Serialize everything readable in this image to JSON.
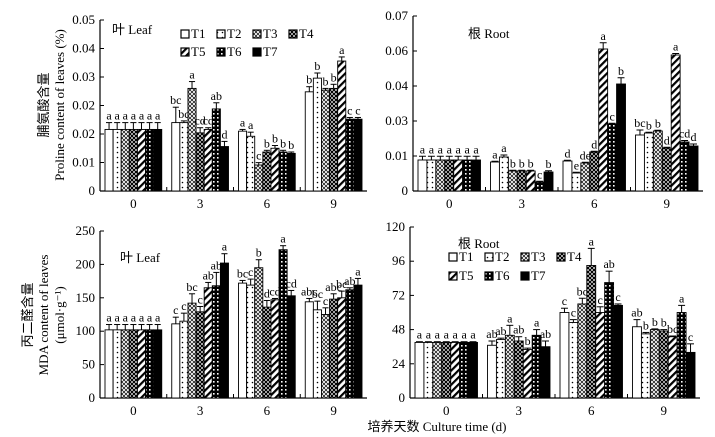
{
  "figure": {
    "xlabel": "培养天数 Culture time (d)",
    "legend_labels": [
      "T1",
      "T2",
      "T3",
      "T4",
      "T5",
      "T6",
      "T7"
    ]
  },
  "chart_data": [
    {
      "type": "bar",
      "id": "proline-leaf",
      "panel_label": "叶 Leaf",
      "ylabel_cn": "脯氨酸含量",
      "ylabel_en": "Proline content of leaves (%)",
      "xlabel": "培养天数 Culture time (d)",
      "categories": [
        "0",
        "3",
        "6",
        "9"
      ],
      "ylim": [
        0,
        0.05
      ],
      "yticks": [
        "0",
        "0.01",
        "0.02",
        "0.02",
        "0.03",
        "0.04",
        "0.05"
      ],
      "legend": "top-center",
      "series": [
        {
          "name": "T1",
          "values": [
            0.018,
            0.02,
            0.0175,
            0.029
          ],
          "errors": [
            0.002,
            0.0045,
            0.0005,
            0.0015
          ],
          "letters": [
            "a",
            "bc",
            "a",
            "b"
          ]
        },
        {
          "name": "T2",
          "values": [
            0.018,
            0.02,
            0.016,
            0.033
          ],
          "errors": [
            0.002,
            0.0005,
            0.0012,
            0.0015
          ],
          "letters": [
            "a",
            "bc",
            "a",
            "b"
          ]
        },
        {
          "name": "T3",
          "values": [
            0.018,
            0.03,
            0.0076,
            0.0295
          ],
          "errors": [
            0.002,
            0.002,
            0.0007,
            0.0005
          ],
          "letters": [
            "a",
            "a",
            "c",
            "b"
          ]
        },
        {
          "name": "T4",
          "values": [
            0.018,
            0.017,
            0.0114,
            0.03
          ],
          "errors": [
            0.002,
            0.0015,
            0.0005,
            0.0012
          ],
          "letters": [
            "a",
            "cd",
            "b",
            "b"
          ]
        },
        {
          "name": "T5",
          "values": [
            0.018,
            0.018,
            0.0125,
            0.038
          ],
          "errors": [
            0.002,
            0.0005,
            0.0008,
            0.0012
          ],
          "letters": [
            "a",
            "cd",
            "b",
            "a"
          ]
        },
        {
          "name": "T6",
          "values": [
            0.018,
            0.024,
            0.0114,
            0.021
          ],
          "errors": [
            0.002,
            0.0018,
            0.0005,
            0.0005
          ],
          "letters": [
            "a",
            "ab",
            "b",
            "c"
          ]
        },
        {
          "name": "T7",
          "values": [
            0.018,
            0.013,
            0.011,
            0.021
          ],
          "errors": [
            0.002,
            0.0015,
            0.0004,
            0.0005
          ],
          "letters": [
            "a",
            "d",
            "b",
            "c"
          ]
        }
      ]
    },
    {
      "type": "bar",
      "id": "proline-root",
      "panel_label": "根 Root",
      "ylabel_cn": "",
      "ylabel_en": "",
      "xlabel": "培养天数 Culture time (d)",
      "categories": [
        "0",
        "3",
        "6",
        "9"
      ],
      "ylim": [
        0,
        0.07
      ],
      "yticks": [
        "0",
        "0.01",
        "0.03",
        "0.04",
        "0.06",
        "0.07"
      ],
      "legend": "none",
      "series": [
        {
          "name": "T1",
          "values": [
            0.0124,
            0.0116,
            0.012,
            0.0224
          ],
          "errors": [
            0.0015,
            0.0003,
            0.0003,
            0.002
          ],
          "letters": [
            "a",
            "a",
            "d",
            "bc"
          ]
        },
        {
          "name": "T2",
          "values": [
            0.0124,
            0.0136,
            0.0072,
            0.0232
          ],
          "errors": [
            0.0015,
            0.0008,
            0.0003,
            0.0003
          ],
          "letters": [
            "a",
            "a",
            "e",
            "b"
          ]
        },
        {
          "name": "T3",
          "values": [
            0.0124,
            0.008,
            0.0112,
            0.024
          ],
          "errors": [
            0.0015,
            0.0003,
            0.0003,
            0.0003
          ],
          "letters": [
            "a",
            "b",
            "de",
            "b"
          ]
        },
        {
          "name": "T4",
          "values": [
            0.0124,
            0.008,
            0.0156,
            0.0172
          ],
          "errors": [
            0.0015,
            0.0003,
            0.0003,
            0.0003
          ],
          "letters": [
            "a",
            "b",
            "d",
            "d"
          ]
        },
        {
          "name": "T5",
          "values": [
            0.0124,
            0.008,
            0.0568,
            0.0544
          ],
          "errors": [
            0.0015,
            0.0003,
            0.0025,
            0.0006
          ],
          "letters": [
            "a",
            "b",
            "a",
            "a"
          ]
        },
        {
          "name": "T6",
          "values": [
            0.0124,
            0.0036,
            0.0268,
            0.0196
          ],
          "errors": [
            0.0015,
            0.0003,
            0.0003,
            0.0006
          ],
          "letters": [
            "a",
            "c",
            "c",
            "cd"
          ]
        },
        {
          "name": "T7",
          "values": [
            0.0124,
            0.0076,
            0.0428,
            0.018
          ],
          "errors": [
            0.0015,
            0.0005,
            0.0025,
            0.0008
          ],
          "letters": [
            "a",
            "b",
            "b",
            "d"
          ]
        }
      ]
    },
    {
      "type": "bar",
      "id": "mda-leaf",
      "panel_label": "叶 Leaf",
      "ylabel_cn": "丙二醛含量",
      "ylabel_en": "MDA content of leaves",
      "ylabel_unit": "(μmol·g⁻¹)",
      "xlabel": "培养天数 Culture time (d)",
      "categories": [
        "0",
        "3",
        "6",
        "9"
      ],
      "ylim": [
        0,
        250
      ],
      "yticks": [
        "0",
        "50",
        "100",
        "150",
        "200",
        "250"
      ],
      "legend": "none",
      "series": [
        {
          "name": "T1",
          "values": [
            102,
            111,
            172,
            144
          ],
          "errors": [
            8,
            10,
            4,
            5
          ],
          "letters": [
            "a",
            "c",
            "bc",
            "abc"
          ]
        },
        {
          "name": "T2",
          "values": [
            102,
            115,
            169,
            132
          ],
          "errors": [
            8,
            12,
            9,
            13
          ],
          "letters": [
            "a",
            "c",
            "c",
            "bc"
          ]
        },
        {
          "name": "T3",
          "values": [
            102,
            142,
            195,
            125
          ],
          "errors": [
            8,
            14,
            12,
            10
          ],
          "letters": [
            "a",
            "bc",
            "b",
            "c"
          ]
        },
        {
          "name": "T4",
          "values": [
            102,
            129,
            136,
            148
          ],
          "errors": [
            8,
            8,
            10,
            8
          ],
          "letters": [
            "a",
            "c",
            "d",
            "abc"
          ]
        },
        {
          "name": "T5",
          "values": [
            102,
            165,
            147,
            150
          ],
          "errors": [
            8,
            8,
            2,
            10
          ],
          "letters": [
            "a",
            "ab",
            "cd",
            "bc"
          ]
        },
        {
          "name": "T6",
          "values": [
            102,
            168,
            222,
            162
          ],
          "errors": [
            8,
            20,
            6,
            3
          ],
          "letters": [
            "a",
            "ab",
            "a",
            "ab"
          ]
        },
        {
          "name": "T7",
          "values": [
            102,
            202,
            153,
            169
          ],
          "errors": [
            8,
            14,
            8,
            10
          ],
          "letters": [
            "a",
            "a",
            "cd",
            "a"
          ]
        }
      ]
    },
    {
      "type": "bar",
      "id": "mda-root",
      "panel_label": "根 Root",
      "ylabel_cn": "",
      "ylabel_en": "",
      "xlabel": "培养天数 Culture time (d)",
      "categories": [
        "0",
        "3",
        "6",
        "9"
      ],
      "ylim": [
        0,
        120
      ],
      "yticks": [
        "0",
        "24",
        "48",
        "72",
        "96",
        "120"
      ],
      "legend": "top-left",
      "series": [
        {
          "name": "T1",
          "values": [
            39,
            37,
            60,
            50
          ],
          "errors": [
            0.5,
            3,
            3,
            5
          ],
          "letters": [
            "a",
            "ab",
            "c",
            "ab"
          ]
        },
        {
          "name": "T2",
          "values": [
            39,
            41,
            53,
            45
          ],
          "errors": [
            0.5,
            1,
            2,
            1
          ],
          "letters": [
            "a",
            "ab",
            "c",
            "b"
          ]
        },
        {
          "name": "T3",
          "values": [
            39,
            44,
            66,
            48
          ],
          "errors": [
            0.5,
            7,
            4,
            0.5
          ],
          "letters": [
            "a",
            "a",
            "bc",
            "b"
          ]
        },
        {
          "name": "T4",
          "values": [
            39,
            40,
            93,
            47
          ],
          "errors": [
            0.5,
            3,
            12,
            1
          ],
          "letters": [
            "a",
            "ab",
            "a",
            "b"
          ]
        },
        {
          "name": "T5",
          "values": [
            39,
            34,
            60,
            43
          ],
          "errors": [
            0.5,
            1,
            4,
            0.5
          ],
          "letters": [
            "a",
            "b",
            "c",
            "bc"
          ]
        },
        {
          "name": "T6",
          "values": [
            39,
            44,
            81,
            60
          ],
          "errors": [
            0.5,
            4,
            8,
            5
          ],
          "letters": [
            "a",
            "a",
            "ab",
            "a"
          ]
        },
        {
          "name": "T7",
          "values": [
            39,
            36,
            65,
            32
          ],
          "errors": [
            0.5,
            4,
            1,
            6
          ],
          "letters": [
            "a",
            "ab",
            "c",
            "c"
          ]
        }
      ]
    }
  ]
}
